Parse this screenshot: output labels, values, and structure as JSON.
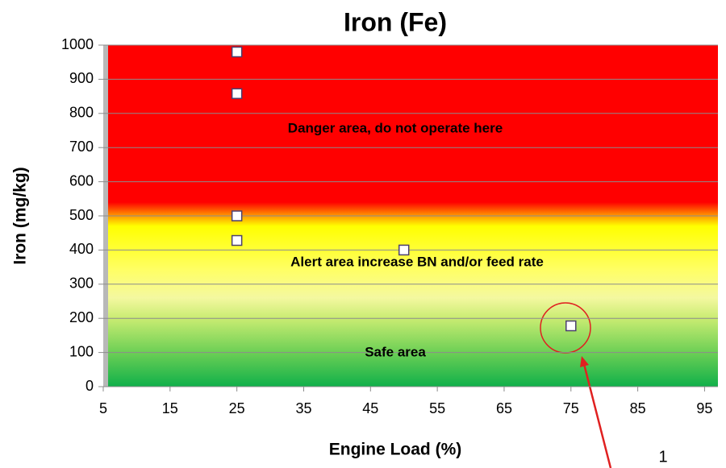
{
  "chart_data": {
    "type": "scatter",
    "title": "Iron (Fe)",
    "x_label": "Engine Load (%)",
    "y_label": "Iron (mg/kg)",
    "x": [
      25,
      25,
      25,
      25,
      50,
      75
    ],
    "values": [
      980,
      858,
      500,
      428,
      400,
      178
    ],
    "color": "#ffffff",
    "edge_color": "#4b3f6e",
    "xlim": [
      5,
      97
    ],
    "ylim": [
      0,
      1000
    ],
    "xticks": [
      5,
      15,
      25,
      35,
      45,
      55,
      65,
      75,
      85,
      95
    ],
    "yticks": [
      0,
      100,
      200,
      300,
      400,
      500,
      600,
      700,
      800,
      900,
      1000
    ],
    "grid": true,
    "annotations": [
      "Danger area, do not operate here",
      "Alert area increase BN and/or feed rate",
      "Safe area",
      "1"
    ]
  }
}
